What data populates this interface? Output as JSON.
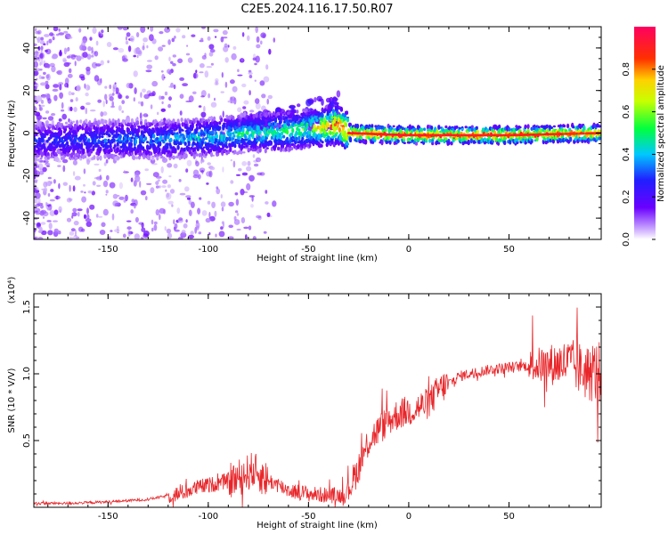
{
  "title": "C2E5.2024.116.17.50.R07",
  "chart_data": [
    {
      "type": "heatmap",
      "xlabel": "Height of straight line (km)",
      "ylabel": "Frequency (Hz)",
      "xlim": [
        -187,
        96
      ],
      "ylim": [
        -50,
        50
      ],
      "xticks": [
        -150,
        -100,
        -50,
        0,
        50
      ],
      "yticks": [
        -40,
        -20,
        0,
        20,
        40
      ],
      "colorbar": {
        "label": "Normalized spectral amplitude",
        "range": [
          0,
          1
        ],
        "ticks": [
          "0.0",
          "0.2",
          "0.4",
          "0.6",
          "0.8"
        ],
        "colormap": "rainbow (violet to magenta)"
      },
      "ridge": {
        "x": [
          -187,
          -150,
          -120,
          -100,
          -80,
          -60,
          -50,
          -40,
          -35,
          -30,
          0,
          50,
          96
        ],
        "freq": [
          -4,
          -3,
          -3,
          -2,
          0,
          1,
          2,
          3,
          4,
          0,
          -1,
          -1,
          0
        ],
        "amplitude": [
          0.3,
          0.35,
          0.4,
          0.45,
          0.5,
          0.55,
          0.6,
          0.85,
          0.9,
          0.95,
          0.95,
          0.95,
          0.9
        ]
      }
    },
    {
      "type": "line",
      "xlabel": "Height of straight line (km)",
      "ylabel": "SNR (10 * V/V)",
      "yscale_label": "(x10⁴)",
      "xlim": [
        -187,
        96
      ],
      "ylim": [
        0,
        1.6
      ],
      "xticks": [
        -150,
        -100,
        -50,
        0,
        50
      ],
      "yticks": [
        0.5,
        1.0,
        1.5
      ],
      "series": [
        {
          "name": "SNR",
          "color": "#e8262a",
          "x": [
            -187,
            -170,
            -150,
            -130,
            -115,
            -105,
            -95,
            -85,
            -78,
            -70,
            -60,
            -50,
            -40,
            -32,
            -28,
            -25,
            -20,
            -15,
            -10,
            -5,
            0,
            5,
            10,
            15,
            20,
            25,
            30,
            40,
            50,
            60,
            70,
            80,
            90,
            96
          ],
          "y": [
            0.03,
            0.03,
            0.04,
            0.06,
            0.1,
            0.15,
            0.18,
            0.22,
            0.28,
            0.2,
            0.13,
            0.1,
            0.09,
            0.09,
            0.2,
            0.3,
            0.5,
            0.58,
            0.65,
            0.7,
            0.72,
            0.75,
            0.78,
            0.88,
            0.93,
            0.98,
            1.0,
            1.03,
            1.05,
            1.06,
            1.07,
            1.08,
            1.0,
            1.02
          ]
        }
      ]
    }
  ]
}
